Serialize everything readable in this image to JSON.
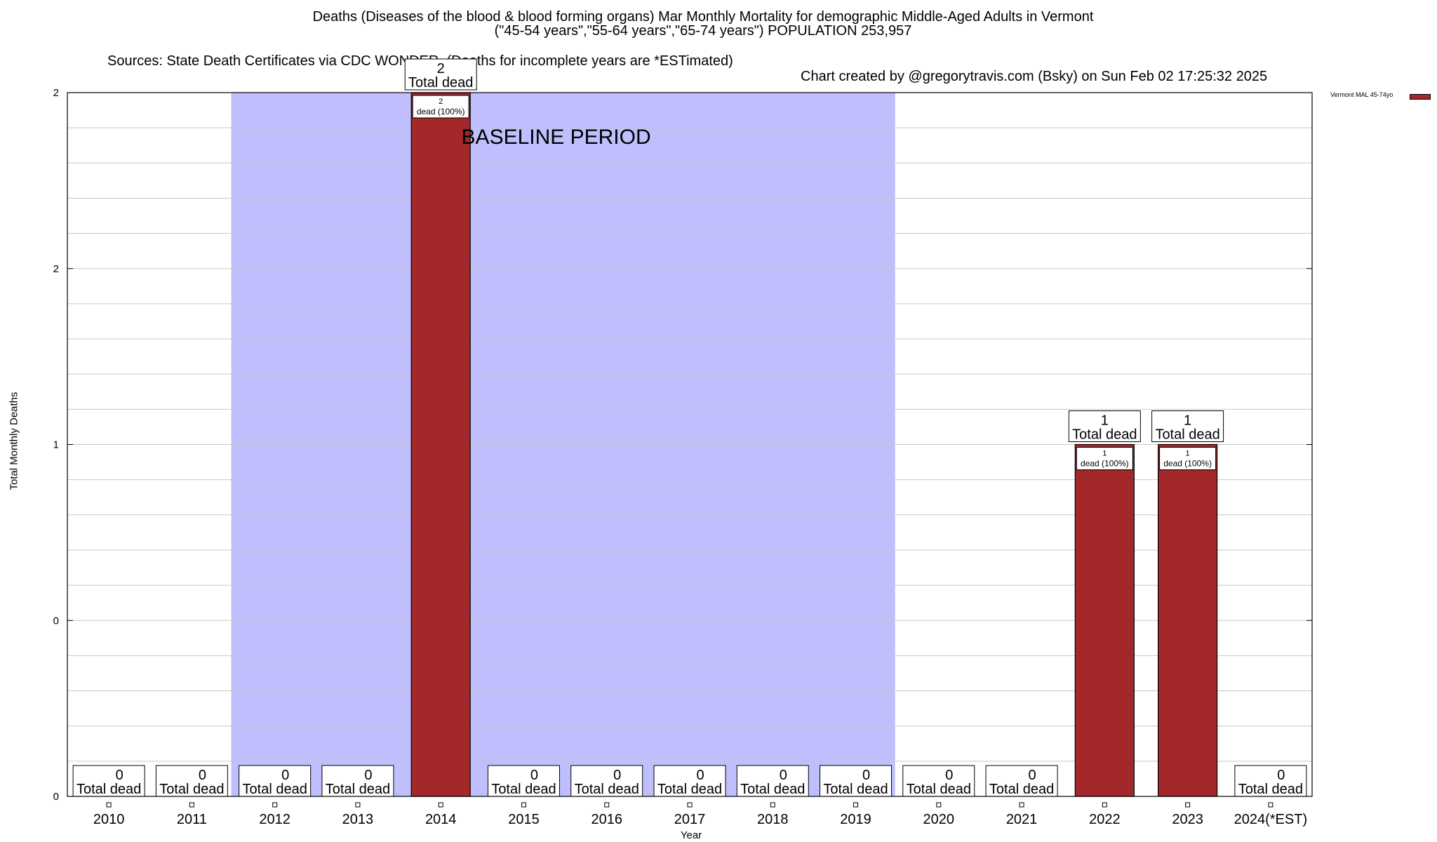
{
  "header": {
    "title_line1": "Deaths (Diseases of the blood & blood forming organs) Mar Monthly Mortality for demographic Middle-Aged Adults in Vermont",
    "title_line2": "(\"45-54 years\",\"55-64 years\",\"65-74 years\") POPULATION 253,957",
    "sources": "Sources: State Death Certificates via CDC WONDER. (Deaths for incomplete years are *ESTimated)",
    "credit": "Chart created by @gregorytravis.com (Bsky) on Sun Feb 02 17:25:32 2025"
  },
  "colors": {
    "bar": "#a2282a",
    "baseline_band": "#bfbffe",
    "grid": "#c8c8c8"
  },
  "chart_data": {
    "type": "bar",
    "title": "Deaths (Diseases of the blood & blood forming organs) Mar Monthly Mortality for demographic Middle-Aged Adults in Vermont",
    "xlabel": "Year",
    "ylabel": "Total Monthly Deaths",
    "categories": [
      "2010",
      "2011",
      "2012",
      "2013",
      "2014",
      "2015",
      "2016",
      "2017",
      "2018",
      "2019",
      "2020",
      "2021",
      "2022",
      "2023",
      "2024(*EST)"
    ],
    "series": [
      {
        "name": "Vermont MAL 45-74yo",
        "values": [
          0,
          0,
          0,
          0,
          2,
          0,
          0,
          0,
          0,
          0,
          0,
          0,
          1,
          1,
          0
        ]
      }
    ],
    "ylim": [
      0,
      2
    ],
    "y_tick_labels": [
      "0",
      "0",
      "1",
      "2",
      "2"
    ],
    "total_label_suffix": "Total dead",
    "bar_label_suffix": "dead (100%)",
    "baseline": {
      "label": "BASELINE PERIOD",
      "from": "2012",
      "to": "2019"
    },
    "legend": {
      "position": "top-right",
      "entries": [
        "Vermont MAL 45-74yo"
      ]
    },
    "grid": true
  }
}
